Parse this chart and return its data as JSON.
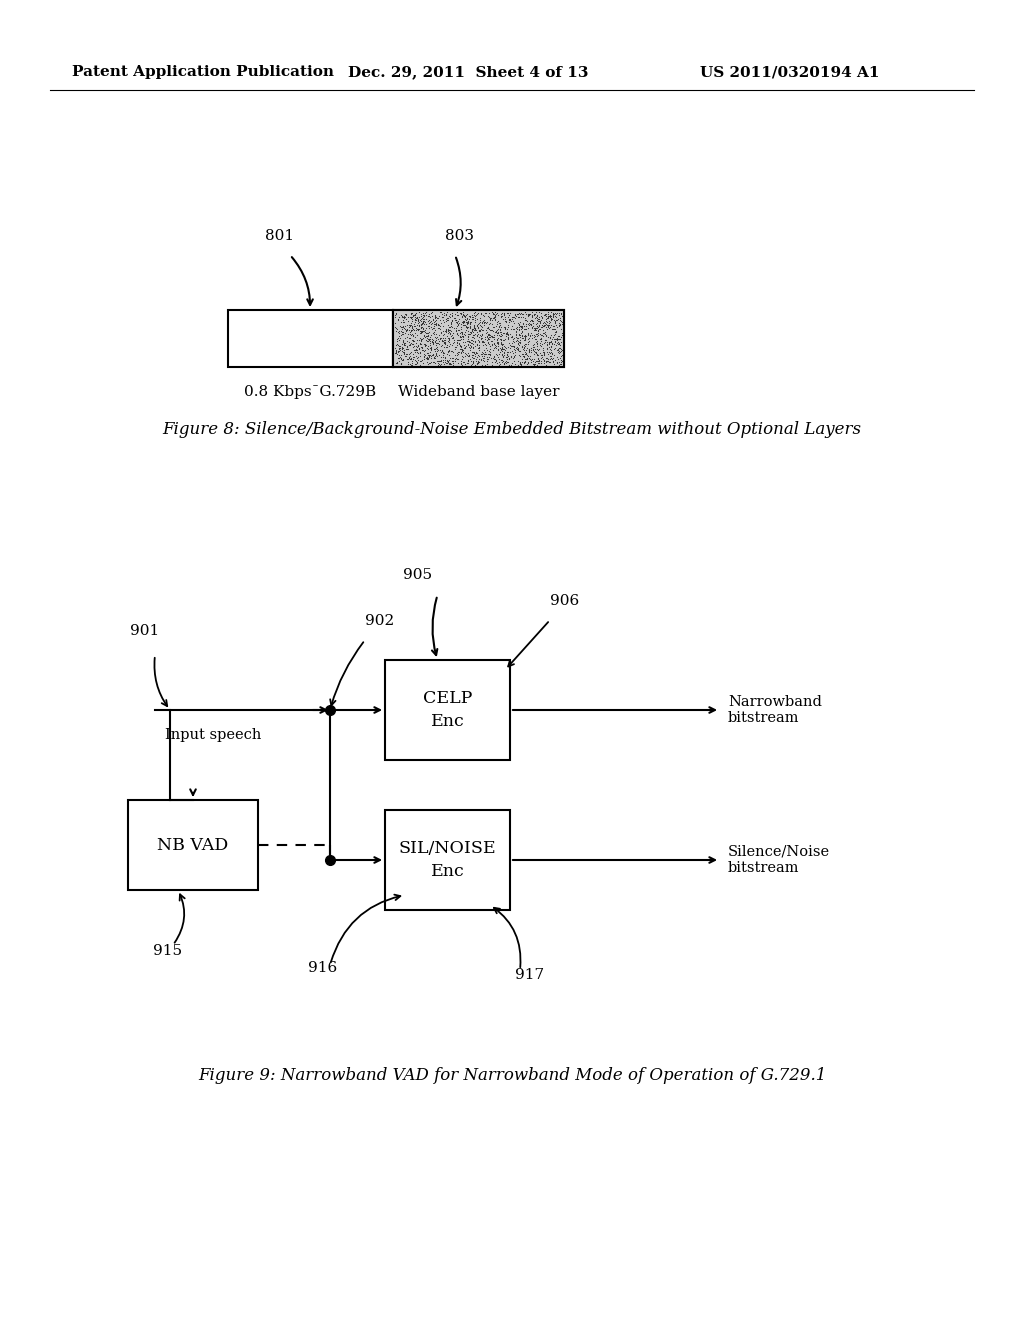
{
  "background_color": "#ffffff",
  "header_left": "Patent Application Publication",
  "header_mid": "Dec. 29, 2011  Sheet 4 of 13",
  "header_right": "US 2011/0320194 A1",
  "fig8_caption": "Figure 8: Silence/Background-Noise Embedded Bitstream without Optional Layers",
  "fig9_caption": "Figure 9: Narrowband VAD for Narrowband Mode of Operation of G.729.1",
  "label_801": "801",
  "label_803": "803",
  "label_left_box": "0.8 Kbps¯G.729B",
  "label_right_box": "Wideband base layer",
  "label_901": "901",
  "label_902": "902",
  "label_905": "905",
  "label_906": "906",
  "label_915": "915",
  "label_916": "916",
  "label_917": "917",
  "label_input": "Input speech",
  "label_nb_bs": "Narrowband\nbitstream",
  "label_sn_bs": "Silence/Noise\nbitstream",
  "label_nbvad": "NB VAD",
  "label_celp": "CELP\nEnc",
  "label_silnoise": "SIL/NOISE\nEnc"
}
